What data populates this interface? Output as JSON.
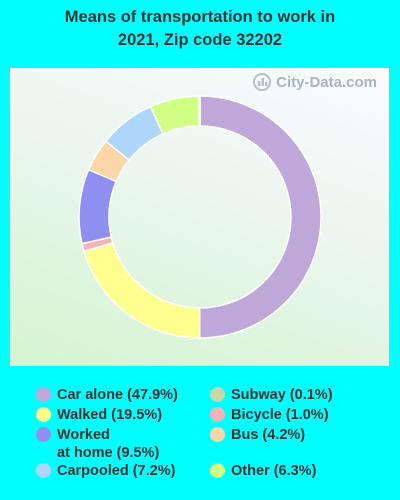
{
  "title_line1": "Means of transportation to work in",
  "title_line2": "2021, Zip code 32202",
  "watermark": "City-Data.com",
  "chart_data": {
    "type": "pie",
    "style": "donut",
    "slices": [
      {
        "name": "Car alone",
        "value": 47.9,
        "color": "#BFA7DA",
        "label": "Car alone (47.9%)"
      },
      {
        "name": "Walked",
        "value": 19.5,
        "color": "#FEFE8E",
        "label": "Walked (19.5%)"
      },
      {
        "name": "Bicycle",
        "value": 1.0,
        "color": "#F4B2B9",
        "label": "Bicycle (1.0%)"
      },
      {
        "name": "Worked at home",
        "value": 9.5,
        "color": "#908EF0",
        "label": "Worked\nat home (9.5%)"
      },
      {
        "name": "Bus",
        "value": 4.2,
        "color": "#FCD6A9",
        "label": "Bus (4.2%)"
      },
      {
        "name": "Carpooled",
        "value": 7.2,
        "color": "#AED6FB",
        "label": "Carpooled (7.2%)"
      },
      {
        "name": "Other",
        "value": 6.3,
        "color": "#CFFF84",
        "label": "Other (6.3%)"
      },
      {
        "name": "Subway",
        "value": 0.1,
        "color": "#C6D8A8",
        "label": "Subway (0.1%)"
      }
    ],
    "legend_order": [
      "Car alone",
      "Walked",
      "Worked at home",
      "Carpooled",
      "Subway",
      "Bicycle",
      "Bus",
      "Other"
    ]
  }
}
